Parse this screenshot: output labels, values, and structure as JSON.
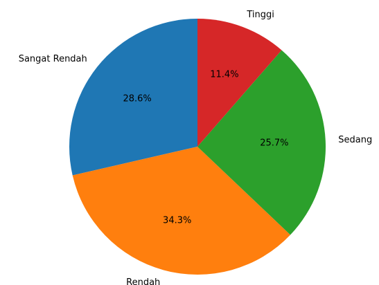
{
  "chart_data": {
    "type": "pie",
    "categories": [
      "Sangat Rendah",
      "Rendah",
      "Sedang",
      "Tinggi"
    ],
    "values": [
      28.6,
      34.3,
      25.7,
      11.4
    ],
    "value_labels": [
      "28.6%",
      "34.3%",
      "25.7%",
      "11.4%"
    ],
    "colors": [
      "#1f77b4",
      "#ff7f0e",
      "#2ca02c",
      "#d62728"
    ]
  }
}
